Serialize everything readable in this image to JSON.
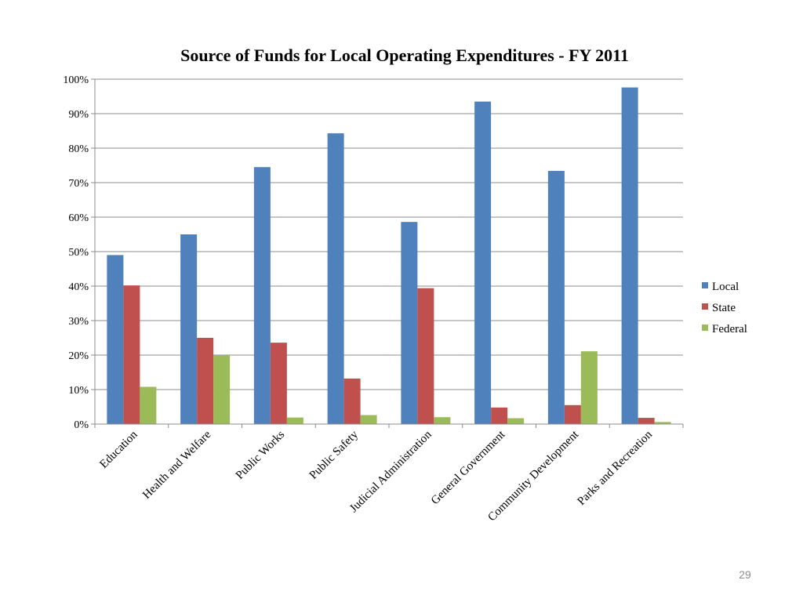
{
  "chart_data": {
    "type": "bar",
    "title": "Source of Funds for Local Operating Expenditures - FY 2011",
    "categories": [
      "Education",
      "Health and Welfare",
      "Public Works",
      "Public Safety",
      "Judicial Administration",
      "General Government",
      "Community Development",
      "Parks and Recreation"
    ],
    "series": [
      {
        "name": "Local",
        "color": "#4f81bd",
        "values": [
          49,
          55,
          74.5,
          84.3,
          58.6,
          93.5,
          73.4,
          97.6
        ]
      },
      {
        "name": "State",
        "color": "#c0504d",
        "values": [
          40.2,
          25,
          23.6,
          13.2,
          39.4,
          4.8,
          5.5,
          1.8
        ]
      },
      {
        "name": "Federal",
        "color": "#9bbb59",
        "values": [
          10.8,
          20,
          1.9,
          2.6,
          2,
          1.7,
          21.1,
          0.6
        ]
      }
    ],
    "yticks": [
      "0%",
      "10%",
      "20%",
      "30%",
      "40%",
      "50%",
      "60%",
      "70%",
      "80%",
      "90%",
      "100%"
    ],
    "ylim": [
      0,
      100
    ],
    "grid": true,
    "legend": "right"
  },
  "slide": {
    "page_number": "29"
  }
}
